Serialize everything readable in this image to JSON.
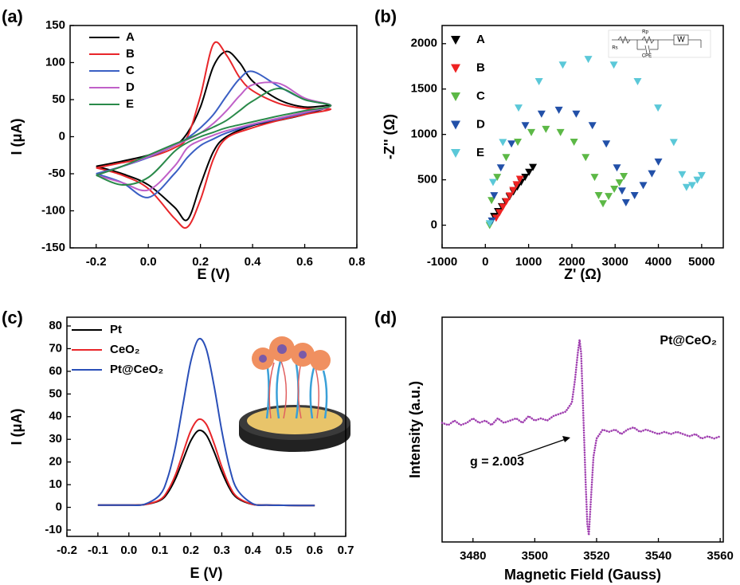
{
  "chart_data": [
    {
      "type": "line",
      "panel_label": "(a)",
      "x_label": "E (V)",
      "y_label": "I (μA)",
      "xlim": [
        -0.3,
        0.8
      ],
      "ylim": [
        -150,
        150
      ],
      "xticks": [
        -0.2,
        {
          "value": 0,
          "label": "0.0"
        },
        0.2,
        0.4,
        0.6,
        0.8
      ],
      "yticks": [
        -150,
        -100,
        -50,
        0,
        50,
        100,
        150
      ],
      "x": [
        -0.2,
        -0.1,
        0,
        0.1,
        0.15,
        0.2,
        0.25,
        0.3,
        0.35,
        0.4,
        0.5,
        0.6,
        0.7,
        0.6,
        0.5,
        0.4,
        0.3,
        0.25,
        0.2,
        0.15,
        0.1,
        0,
        -0.1,
        -0.2
      ],
      "series": [
        {
          "name": "A",
          "color": "#000000",
          "values": [
            -40,
            -33,
            -25,
            -12,
            5,
            40,
            95,
            115,
            100,
            75,
            50,
            40,
            42,
            30,
            22,
            15,
            0,
            -20,
            -65,
            -112,
            -95,
            -65,
            -50,
            -40
          ]
        },
        {
          "name": "B",
          "color": "#e8262a",
          "values": [
            -42,
            -35,
            -28,
            -15,
            0,
            55,
            125,
            110,
            80,
            62,
            45,
            38,
            37,
            30,
            22,
            12,
            -2,
            -30,
            -85,
            -122,
            -110,
            -70,
            -52,
            -42
          ]
        },
        {
          "name": "C",
          "color": "#3a5fc4",
          "values": [
            -50,
            -40,
            -28,
            -12,
            -2,
            12,
            30,
            55,
            78,
            88,
            68,
            50,
            42,
            32,
            24,
            16,
            5,
            -3,
            -12,
            -28,
            -50,
            -82,
            -62,
            -50
          ]
        },
        {
          "name": "D",
          "color": "#c060c8",
          "values": [
            -52,
            -40,
            -27,
            -12,
            -4,
            5,
            18,
            35,
            55,
            70,
            72,
            52,
            42,
            33,
            25,
            17,
            8,
            2,
            -5,
            -15,
            -40,
            -72,
            -62,
            -52
          ]
        },
        {
          "name": "E",
          "color": "#2a8a4a",
          "values": [
            -52,
            -40,
            -25,
            -10,
            -3,
            5,
            13,
            22,
            35,
            48,
            65,
            50,
            42,
            35,
            28,
            20,
            12,
            6,
            0,
            -8,
            -20,
            -55,
            -65,
            -52
          ]
        }
      ]
    },
    {
      "type": "scatter",
      "panel_label": "(b)",
      "x_label": "Z' (Ω)",
      "y_label": "-Z'' (Ω)",
      "xlim": [
        -1000,
        5500
      ],
      "ylim": [
        -250,
        2200
      ],
      "xticks": [
        -1000,
        0,
        1000,
        2000,
        3000,
        4000,
        5000
      ],
      "yticks": [
        0,
        500,
        1000,
        1500,
        2000
      ],
      "inset_labels": [
        "Rs",
        "Rp",
        "W",
        "CPE"
      ],
      "series": [
        {
          "name": "A",
          "color": "#000000",
          "x": [
            200,
            290,
            380,
            470,
            560,
            650,
            740,
            830,
            920,
            1010,
            1100
          ],
          "values": [
            100,
            154,
            208,
            262,
            316,
            370,
            424,
            478,
            532,
            586,
            640
          ]
        },
        {
          "name": "B",
          "color": "#ee2222",
          "x": [
            250,
            329,
            407,
            486,
            564,
            643,
            721,
            800
          ],
          "values": [
            80,
            141,
            203,
            264,
            326,
            387,
            449,
            510
          ]
        },
        {
          "name": "C",
          "color": "#5cb846",
          "x": [
            100,
            144,
            274,
            481,
            750,
            1063,
            1400,
            1737,
            2050,
            2319,
            2526,
            2620,
            2720,
            2850,
            2980,
            3100,
            3200
          ],
          "values": [
            0,
            275,
            530,
            749,
            918,
            1024,
            1060,
            1024,
            918,
            749,
            530,
            330,
            240,
            320,
            400,
            470,
            540
          ]
        },
        {
          "name": "D",
          "color": "#2250a8",
          "x": [
            150,
            203,
            358,
            604,
            925,
            1299,
            1700,
            2101,
            2475,
            2796,
            3042,
            3160,
            3250,
            3450,
            3650,
            3850,
            4000
          ],
          "values": [
            50,
            329,
            635,
            898,
            1100,
            1227,
            1270,
            1227,
            1100,
            898,
            635,
            380,
            250,
            330,
            440,
            570,
            700
          ]
        },
        {
          "name": "E",
          "color": "#5bc8d8",
          "x": [
            100,
            178,
            405,
            768,
            1240,
            1790,
            2380,
            2970,
            3520,
            3992,
            4355,
            4550,
            4650,
            4780,
            4900,
            5000
          ],
          "values": [
            20,
            474,
            915,
            1294,
            1585,
            1768,
            1830,
            1768,
            1585,
            1294,
            915,
            560,
            420,
            440,
            500,
            550
          ]
        }
      ]
    },
    {
      "type": "line",
      "panel_label": "(c)",
      "x_label": "E (V)",
      "y_label": "I (μA)",
      "xlim": [
        -0.2,
        0.7
      ],
      "ylim": [
        -10,
        80
      ],
      "xticks": [
        -0.2,
        -0.1,
        {
          "value": 0,
          "label": "0.0"
        },
        0.1,
        0.2,
        0.3,
        0.4,
        0.5,
        0.6,
        0.7
      ],
      "yticks": [
        -10,
        0,
        10,
        20,
        30,
        40,
        50,
        60,
        70,
        80
      ],
      "x": [
        -0.1,
        -0.05,
        0,
        0.05,
        0.1,
        0.125,
        0.15,
        0.175,
        0.2,
        0.225,
        0.25,
        0.275,
        0.3,
        0.325,
        0.35,
        0.4,
        0.45,
        0.5,
        0.55,
        0.6
      ],
      "series": [
        {
          "name": "Pt",
          "color": "#000000",
          "values": [
            1,
            1,
            1,
            1.2,
            3,
            6.3,
            12.5,
            21,
            29.4,
            33.9,
            31.9,
            24.6,
            15.7,
            8.4,
            4.1,
            1.3,
            1,
            0.9,
            0.8,
            0.8
          ]
        },
        {
          "name": "CeO₂",
          "color": "#e8262a",
          "values": [
            1,
            1,
            1,
            1.2,
            3.3,
            7.2,
            14.2,
            24.1,
            33.8,
            38.8,
            36.6,
            28.2,
            17.9,
            9.5,
            4.5,
            1.3,
            1,
            0.9,
            0.8,
            0.8
          ]
        },
        {
          "name": "Pt@CeO₂",
          "color": "#2a4fb8",
          "values": [
            1,
            1,
            1,
            1.3,
            5.5,
            12.9,
            26.5,
            45.6,
            64.4,
            74.2,
            69.8,
            53.6,
            33.7,
            17.5,
            7.8,
            1.6,
            1,
            0.9,
            0.8,
            0.8
          ]
        }
      ]
    },
    {
      "type": "line",
      "panel_label": "(d)",
      "x_label": "Magnetic Field (Gauss)",
      "y_label": "Intensity (a.u.)",
      "xlim": [
        3470,
        3561
      ],
      "ylim": [
        0,
        1
      ],
      "xticks": [
        3480,
        3500,
        3520,
        3540,
        3560
      ],
      "annotations": [
        "Pt@CeO₂",
        "g = 2.003"
      ],
      "series": [
        {
          "color": "#a040b0",
          "dotted": true,
          "x": [
            3470,
            3472,
            3474,
            3476,
            3478,
            3480,
            3482,
            3484,
            3486,
            3488,
            3490,
            3492,
            3494,
            3496,
            3498,
            3500,
            3502,
            3504,
            3506,
            3508,
            3510,
            3512,
            3513,
            3514,
            3514.5,
            3515,
            3515.5,
            3516,
            3516.5,
            3517,
            3517.5,
            3518,
            3519,
            3520,
            3522,
            3524,
            3526,
            3528,
            3530,
            3532,
            3534,
            3536,
            3538,
            3540,
            3542,
            3544,
            3546,
            3548,
            3550,
            3552,
            3554,
            3556,
            3558,
            3560
          ],
          "values": [
            0.53,
            0.52,
            0.54,
            0.52,
            0.53,
            0.55,
            0.53,
            0.54,
            0.52,
            0.55,
            0.53,
            0.54,
            0.55,
            0.53,
            0.56,
            0.54,
            0.55,
            0.54,
            0.56,
            0.57,
            0.58,
            0.62,
            0.72,
            0.85,
            0.9,
            0.84,
            0.65,
            0.45,
            0.25,
            0.08,
            0.03,
            0.15,
            0.38,
            0.46,
            0.5,
            0.49,
            0.5,
            0.48,
            0.5,
            0.51,
            0.49,
            0.5,
            0.49,
            0.48,
            0.49,
            0.48,
            0.49,
            0.48,
            0.47,
            0.48,
            0.46,
            0.47,
            0.46,
            0.47
          ]
        }
      ]
    }
  ]
}
